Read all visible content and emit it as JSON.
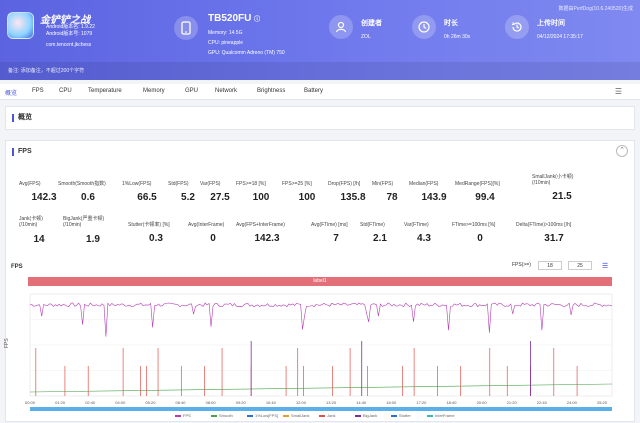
{
  "header": {
    "app_name": "金铲铲之战",
    "app_android_lines": [
      "Android版本名: 1.9.22",
      "Android版本号: 1079"
    ],
    "app_package": "com.tencent.jkchess",
    "device_name": "TB520FU",
    "device_lines": [
      "Memory: 14.5G",
      "CPU: pineapple",
      "GPU: Qualcomm Adreno (TM) 750"
    ],
    "creator_label": "创建者",
    "creator_value": "ZOL",
    "duration_label": "时长",
    "duration_value": "0h 26m 30s",
    "upload_label": "上传时间",
    "upload_value": "04/12/2024 17:35:17",
    "version": "数据由PerfDog(10.6.240520)生成",
    "note": "备注: 添加备注，不超过200个字符"
  },
  "tabs": [
    "概览",
    "FPS",
    "CPU",
    "Temperature",
    "Memory",
    "GPU",
    "Network",
    "Brightness",
    "Battery"
  ],
  "overview": {
    "title": "概览"
  },
  "fps_panel": {
    "title": "FPS",
    "stats_row1": [
      {
        "label": "Avg(FPS)",
        "value": "142.3"
      },
      {
        "label": "Smooth(Smooth指数)",
        "value": "0.6"
      },
      {
        "label": "1%Low(FPS)",
        "value": "66.5"
      },
      {
        "label": "Std(FPS)",
        "value": "5.2"
      },
      {
        "label": "Var(FPS)",
        "value": "27.5"
      },
      {
        "label": "FPS>=18 [%]",
        "value": "100"
      },
      {
        "label": "FPS>=25 [%]",
        "value": "100"
      },
      {
        "label": "Drop(FPS) [/h]",
        "value": "135.8"
      },
      {
        "label": "Min(FPS)",
        "value": "78"
      },
      {
        "label": "Median(FPS)",
        "value": "143.9"
      },
      {
        "label": "MedRange(FPS)[%]",
        "value": "99.4"
      },
      {
        "label": "SmallJank(小卡顿)\n(/10min)",
        "value": "21.5"
      }
    ],
    "stats_row2": [
      {
        "label": "Jank(卡顿)\n(/10min)",
        "value": "14"
      },
      {
        "label": "BigJank(严重卡顿)\n(/10min)",
        "value": "1.9"
      },
      {
        "label": "Stutter(卡顿率) [%]",
        "value": "0.3"
      },
      {
        "label": "Avg(InterFrame)",
        "value": "0"
      },
      {
        "label": "Avg(FPS+InterFrame)",
        "value": "142.3"
      },
      {
        "label": "Avg(FTime) [ms]",
        "value": "7"
      },
      {
        "label": "Std(FTime)",
        "value": "2.1"
      },
      {
        "label": "Var(FTime)",
        "value": "4.3"
      },
      {
        "label": "FTime>=100ms [%]",
        "value": "0"
      },
      {
        "label": "Delta(FTime)>100ms [/h]",
        "value": "31.7"
      }
    ],
    "chart_title": "FPS",
    "fps_filter_label": "FPS(>=)",
    "fps_filter_a": "18",
    "fps_filter_b": "25",
    "label_bar": "label1",
    "time_ticks": [
      "00:00",
      "01:20",
      "02:40",
      "04:00",
      "05:20",
      "06:40",
      "08:00",
      "09:20",
      "10:40",
      "12:00",
      "13:20",
      "14:40",
      "16:00",
      "17:20",
      "18:40",
      "20:00",
      "21:20",
      "22:40",
      "24:00",
      "25:20"
    ],
    "y_left_label": "FPS",
    "legend": [
      "FPS",
      "Smooth",
      "1%Low[FPS]",
      "SmallJank",
      "Jank",
      "BigJank",
      "Stutter",
      "InterFrame"
    ],
    "colors": {
      "fps": "#b33fb3",
      "jank": "#e0504a",
      "bigjank": "#7a2ea0",
      "stutter": "#2a6fd6",
      "smooth": "#4aa34a",
      "accent": "#4a56d8"
    }
  },
  "chart_data": {
    "type": "line",
    "title": "FPS",
    "xlabel": "",
    "ylabel": "FPS",
    "x_ticks": [
      "00:00",
      "01:20",
      "02:40",
      "04:00",
      "05:20",
      "06:40",
      "08:00",
      "09:20",
      "10:40",
      "12:00",
      "13:20",
      "14:40",
      "16:00",
      "17:20",
      "18:40",
      "20:00",
      "21:20",
      "22:40",
      "24:00",
      "25:20"
    ],
    "series": [
      {
        "name": "FPS",
        "values_note": "approx. 143 throughout with dips",
        "x": [
          "00:00",
          "01:20",
          "02:40",
          "04:00",
          "05:20",
          "06:40",
          "08:00",
          "09:20",
          "10:40",
          "12:00",
          "13:20",
          "14:40",
          "16:00",
          "17:20",
          "18:40",
          "20:00",
          "21:20",
          "22:40",
          "24:00",
          "25:20"
        ],
        "values": [
          143,
          144,
          143,
          142,
          143,
          144,
          142,
          143,
          141,
          143,
          143,
          144,
          142,
          143,
          143,
          142,
          143,
          144,
          143,
          143
        ]
      }
    ],
    "grid": true,
    "legend_position": "bottom"
  }
}
